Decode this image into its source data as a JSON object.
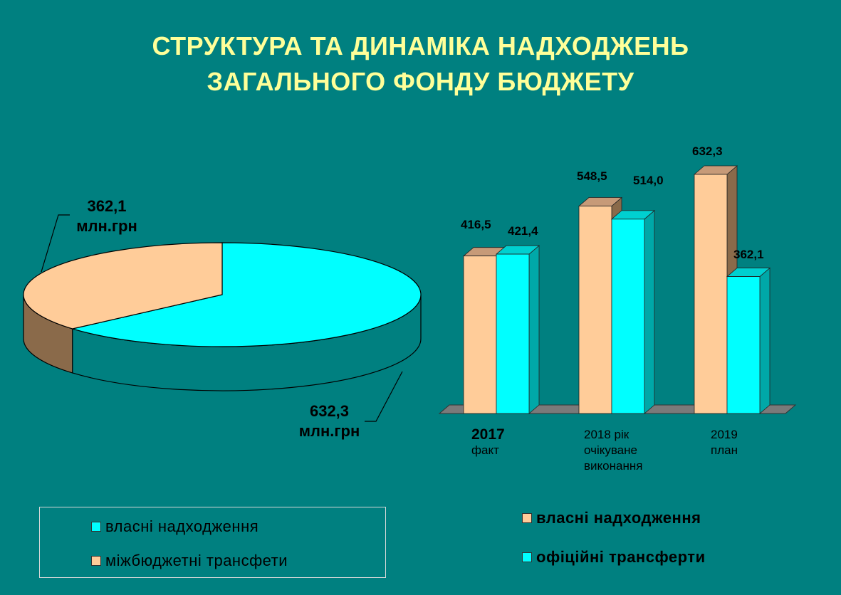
{
  "title": {
    "line1": "СТРУКТУРА ТА ДИНАМІКА НАДХОДЖЕНЬ",
    "line2": "ЗАГАЛЬНОГО ФОНДУ БЮДЖЕТУ"
  },
  "colors": {
    "background": "#008080",
    "title": "#ffff99",
    "own_revenue": "#ffcc99",
    "transfers": "#00ffff",
    "own_side": "#8a6a4a",
    "transfers_side": "#00a8a8"
  },
  "pie": {
    "label_transfers_value": "362,1",
    "label_transfers_unit": "млн.грн",
    "label_own_value": "632,3",
    "label_own_unit": "млн.грн",
    "legend": {
      "own": "власні надходження",
      "transfers": "міжбюджетні трансфети"
    }
  },
  "bar_legend": {
    "own": "власні надходження",
    "transfers": "офіційні трансферти"
  },
  "categories": [
    {
      "year": "2017",
      "sub": "факт"
    },
    {
      "year": "2018 рік",
      "sub": "очікуване виконання"
    },
    {
      "year": "2019",
      "sub": "план"
    }
  ],
  "value_labels": [
    [
      "416,5",
      "421,4"
    ],
    [
      "548,5",
      "514,0"
    ],
    [
      "632,3",
      "362,1"
    ]
  ],
  "chart_data": [
    {
      "type": "pie",
      "title": "",
      "slices": [
        {
          "name": "власні надходження",
          "value": 632.3,
          "label": "632,3 млн.грн",
          "color": "#00ffff"
        },
        {
          "name": "міжбюджетні трансфети",
          "value": 362.1,
          "label": "362,1 млн.грн",
          "color": "#ffcc99"
        }
      ],
      "legend": "bottom-left"
    },
    {
      "type": "bar",
      "title": "",
      "categories": [
        "2017 факт",
        "2018 рік очікуване виконання",
        "2019 план"
      ],
      "series": [
        {
          "name": "власні надходження",
          "values": [
            416.5,
            548.5,
            632.3
          ],
          "color": "#ffcc99"
        },
        {
          "name": "офіційні трансферти",
          "values": [
            421.4,
            514.0,
            362.1
          ],
          "color": "#00ffff"
        }
      ],
      "ylim": [
        0,
        650
      ],
      "grid": false,
      "legend": "bottom-right"
    }
  ]
}
